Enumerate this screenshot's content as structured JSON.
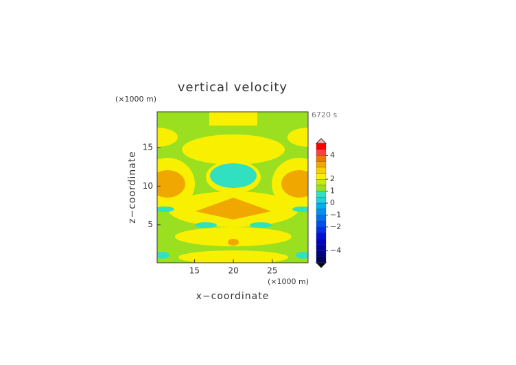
{
  "chart_data": {
    "type": "contour",
    "title": "vertical velocity",
    "x_label": "x−coordinate",
    "y_label": "z−coordinate",
    "x_unit": "(×1000 m)",
    "y_unit": "(×1000 m)",
    "time_label": "6720 s",
    "xlim": [
      10.2,
      29.6
    ],
    "xticks": [
      15,
      20,
      25
    ],
    "ylim": [
      0.1,
      19.6
    ],
    "yticks": [
      5,
      10,
      15
    ],
    "colorbar": {
      "clim": [
        -5,
        5
      ],
      "colors": [
        "#000060",
        "#000080",
        "#0000a0",
        "#0000c0",
        "#0010d8",
        "#0030e8",
        "#0050f0",
        "#0070f0",
        "#0090f0",
        "#00b0f0",
        "#20d0e0",
        "#30e0c0",
        "#9be020",
        "#c8e818",
        "#f8f000",
        "#f8d000",
        "#f0a800",
        "#f07800",
        "#ff4040",
        "#ff0000"
      ],
      "top_color": "#ffb0b0",
      "ticks": [
        4,
        2,
        1,
        0,
        {
          "value": -1,
          "label": "−1"
        },
        {
          "value": -2,
          "label": "−2"
        },
        {
          "value": -4,
          "label": "−4"
        }
      ]
    }
  }
}
